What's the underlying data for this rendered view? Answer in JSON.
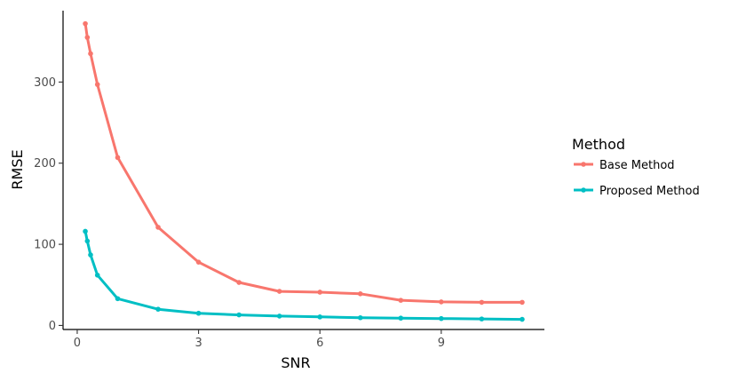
{
  "chart_data": {
    "type": "line",
    "xlabel": "SNR",
    "ylabel": "RMSE",
    "xlim": [
      -0.35,
      11.55
    ],
    "ylim": [
      -5,
      388
    ],
    "xticks": [
      0,
      3,
      6,
      9
    ],
    "yticks": [
      0,
      100,
      200,
      300
    ],
    "grid": false,
    "legend": {
      "title": "Method",
      "position": "right"
    },
    "series": [
      {
        "name": "Base Method",
        "color": "#F8766D",
        "x": [
          0.2,
          0.25,
          0.33,
          0.5,
          1,
          2,
          3,
          4,
          5,
          6,
          7,
          8,
          9,
          10,
          11
        ],
        "y": [
          372,
          355,
          335,
          297,
          207,
          121,
          78,
          53,
          42,
          41,
          39,
          31,
          29,
          28.5,
          28.5
        ]
      },
      {
        "name": "Proposed Method",
        "color": "#00BFC4",
        "x": [
          0.2,
          0.25,
          0.33,
          0.5,
          1,
          2,
          3,
          4,
          5,
          6,
          7,
          8,
          9,
          10,
          11
        ],
        "y": [
          116,
          104,
          87,
          62,
          33,
          20,
          15,
          13,
          11.5,
          10.5,
          9.5,
          9,
          8.5,
          8,
          7.5
        ]
      }
    ]
  }
}
